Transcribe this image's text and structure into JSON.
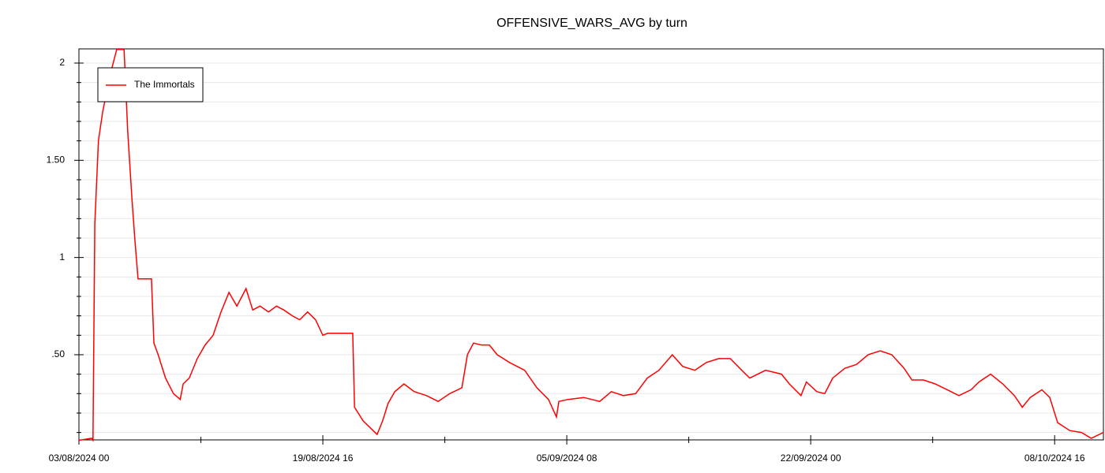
{
  "chart_data": {
    "type": "line",
    "title": "OFFENSIVE_WARS_AVG by turn",
    "x": [
      "03/08/2024 00",
      "03/08/2024 21",
      "03/08/2024 23",
      "04/08/2024 02",
      "04/08/2024 08",
      "04/08/2024 15",
      "05/08/2024 04",
      "05/08/2024 14",
      "06/08/2024 02",
      "06/08/2024 08",
      "06/08/2024 15",
      "06/08/2024 20",
      "07/08/2024 01",
      "07/08/2024 23",
      "08/08/2024 03",
      "08/08/2024 10",
      "08/08/2024 22",
      "09/08/2024 11",
      "09/08/2024 22",
      "10/08/2024 03",
      "10/08/2024 13",
      "11/08/2024 02",
      "11/08/2024 15",
      "12/08/2024 04",
      "12/08/2024 17",
      "13/08/2024 06",
      "13/08/2024 19",
      "14/08/2024 10",
      "14/08/2024 21",
      "15/08/2024 09",
      "15/08/2024 23",
      "16/08/2024 12",
      "17/08/2024 00",
      "17/08/2024 14",
      "18/08/2024 02",
      "18/08/2024 15",
      "19/08/2024 04",
      "19/08/2024 16",
      "20/08/2024 00",
      "21/08/2024 17",
      "21/08/2024 20",
      "22/08/2024 10",
      "22/08/2024 23",
      "23/08/2024 09",
      "23/08/2024 18",
      "24/08/2024 03",
      "24/08/2024 14",
      "25/08/2024 05",
      "25/08/2024 22",
      "26/08/2024 18",
      "27/08/2024 13",
      "28/08/2024 08",
      "29/08/2024 04",
      "29/08/2024 13",
      "29/08/2024 23",
      "30/08/2024 12",
      "31/08/2024 01",
      "31/08/2024 14",
      "01/09/2024 10",
      "02/09/2024 11",
      "03/09/2024 07",
      "04/09/2024 02",
      "04/09/2024 15",
      "04/09/2024 19",
      "05/09/2024 10",
      "06/09/2024 12",
      "07/09/2024 14",
      "08/09/2024 09",
      "09/09/2024 05",
      "10/09/2024 01",
      "10/09/2024 20",
      "11/09/2024 15",
      "12/09/2024 13",
      "13/09/2024 06",
      "14/09/2024 02",
      "14/09/2024 21",
      "15/09/2024 17",
      "16/09/2024 12",
      "17/09/2024 07",
      "17/09/2024 20",
      "18/09/2024 22",
      "20/09/2024 00",
      "20/09/2024 13",
      "21/09/2024 08",
      "21/09/2024 17",
      "22/09/2024 10",
      "22/09/2024 23",
      "23/09/2024 12",
      "24/09/2024 08",
      "25/09/2024 03",
      "25/09/2024 22",
      "26/09/2024 18",
      "27/09/2024 13",
      "28/09/2024 09",
      "28/09/2024 22",
      "29/09/2024 17",
      "30/09/2024 12",
      "01/10/2024 08",
      "02/10/2024 03",
      "02/10/2024 23",
      "03/10/2024 12",
      "04/10/2024 07",
      "05/10/2024 03",
      "05/10/2024 22",
      "06/10/2024 11",
      "07/10/2024 00",
      "07/10/2024 19",
      "08/10/2024 08",
      "08/10/2024 21",
      "09/10/2024 17",
      "10/10/2024 12",
      "11/10/2024 04",
      "12/10/2024 00"
    ],
    "series": [
      {
        "name": "The Immortals",
        "color": "#ff0000",
        "values": [
          0.06,
          0.07,
          0.06,
          1.17,
          1.6,
          1.75,
          1.95,
          2.07,
          2.07,
          1.65,
          1.3,
          1.08,
          0.89,
          0.89,
          0.56,
          0.5,
          0.38,
          0.3,
          0.27,
          0.35,
          0.38,
          0.48,
          0.55,
          0.6,
          0.72,
          0.82,
          0.75,
          0.84,
          0.73,
          0.75,
          0.72,
          0.75,
          0.73,
          0.7,
          0.68,
          0.72,
          0.68,
          0.6,
          0.61,
          0.61,
          0.23,
          0.16,
          0.12,
          0.09,
          0.16,
          0.25,
          0.31,
          0.35,
          0.31,
          0.29,
          0.26,
          0.3,
          0.33,
          0.5,
          0.56,
          0.55,
          0.55,
          0.5,
          0.46,
          0.42,
          0.33,
          0.27,
          0.18,
          0.26,
          0.27,
          0.28,
          0.26,
          0.31,
          0.29,
          0.3,
          0.38,
          0.42,
          0.5,
          0.44,
          0.42,
          0.46,
          0.48,
          0.48,
          0.42,
          0.38,
          0.42,
          0.4,
          0.35,
          0.29,
          0.36,
          0.31,
          0.3,
          0.38,
          0.43,
          0.45,
          0.5,
          0.52,
          0.5,
          0.43,
          0.37,
          0.37,
          0.35,
          0.32,
          0.29,
          0.32,
          0.36,
          0.4,
          0.35,
          0.29,
          0.23,
          0.28,
          0.32,
          0.28,
          0.15,
          0.11,
          0.1,
          0.07,
          0.1
        ]
      }
    ],
    "xlim": [
      "03/08/2024 00",
      "12/10/2024 00"
    ],
    "xticks": [
      "03/08/2024 00",
      "19/08/2024 16",
      "05/09/2024 08",
      "22/09/2024 00",
      "08/10/2024 16"
    ],
    "minor_xticks": [
      "11/08/2024 08",
      "28/08/2024 00",
      "13/09/2024 16",
      "30/09/2024 08"
    ],
    "ylim": [
      0.062,
      2.073
    ],
    "yticks": [
      {
        "value": 0.5,
        "label": ".50"
      },
      1,
      {
        "value": 1.5,
        "label": "1.50"
      },
      2
    ],
    "minor_yticks": [
      0.1,
      0.2,
      0.3,
      0.4,
      0.6,
      0.7,
      0.8,
      0.9,
      1.1,
      1.2,
      1.3,
      1.4,
      1.6,
      1.7,
      1.8,
      1.9
    ],
    "grid": true,
    "legend": "upper left"
  }
}
